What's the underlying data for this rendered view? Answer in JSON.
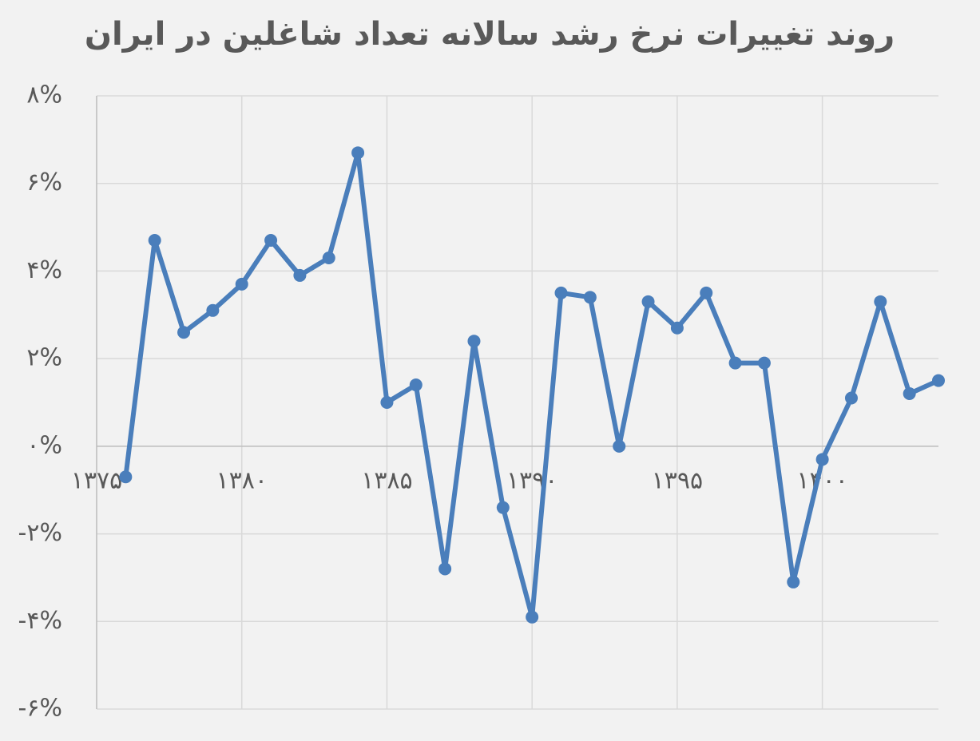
{
  "chart_data": {
    "type": "line",
    "title": "روند تغییرات نرخ رشد سالانه تعداد شاغلین در ایران",
    "x": [
      1376,
      1377,
      1378,
      1379,
      1380,
      1381,
      1382,
      1383,
      1384,
      1385,
      1386,
      1387,
      1388,
      1389,
      1390,
      1391,
      1392,
      1393,
      1394,
      1395,
      1396,
      1397,
      1398,
      1399,
      1400,
      1401,
      1402,
      1403,
      1404
    ],
    "series": [
      {
        "color": "#4a7ebb",
        "values": [
          -0.7,
          4.7,
          2.6,
          3.1,
          3.7,
          4.7,
          3.9,
          4.3,
          6.7,
          1.0,
          1.4,
          -2.8,
          2.4,
          -1.4,
          -3.9,
          3.5,
          3.4,
          0,
          3.3,
          2.7,
          3.5,
          1.9,
          1.9,
          -3.1,
          -0.3,
          1.1,
          3.3,
          1.2,
          1.5
        ]
      }
    ],
    "xlim": [
      1375,
      1404
    ],
    "xticks": [
      {
        "value": 1375,
        "label": "۱۳۷۵"
      },
      {
        "value": 1380,
        "label": "۱۳۸۰"
      },
      {
        "value": 1385,
        "label": "۱۳۸۵"
      },
      {
        "value": 1390,
        "label": "۱۳۹۰"
      },
      {
        "value": 1395,
        "label": "۱۳۹۵"
      },
      {
        "value": 1400,
        "label": "۱۴۰۰"
      }
    ],
    "ylim": [
      -6,
      8
    ],
    "yticks": [
      {
        "value": 8,
        "label": "۸%"
      },
      {
        "value": 6,
        "label": "۶%"
      },
      {
        "value": 4,
        "label": "۴%"
      },
      {
        "value": 2,
        "label": "۲%"
      },
      {
        "value": 0,
        "label": "۰%"
      },
      {
        "value": -2,
        "label": "-۲%"
      },
      {
        "value": -4,
        "label": "-۴%"
      },
      {
        "value": -6,
        "label": "-۶%"
      }
    ],
    "grid": true
  }
}
